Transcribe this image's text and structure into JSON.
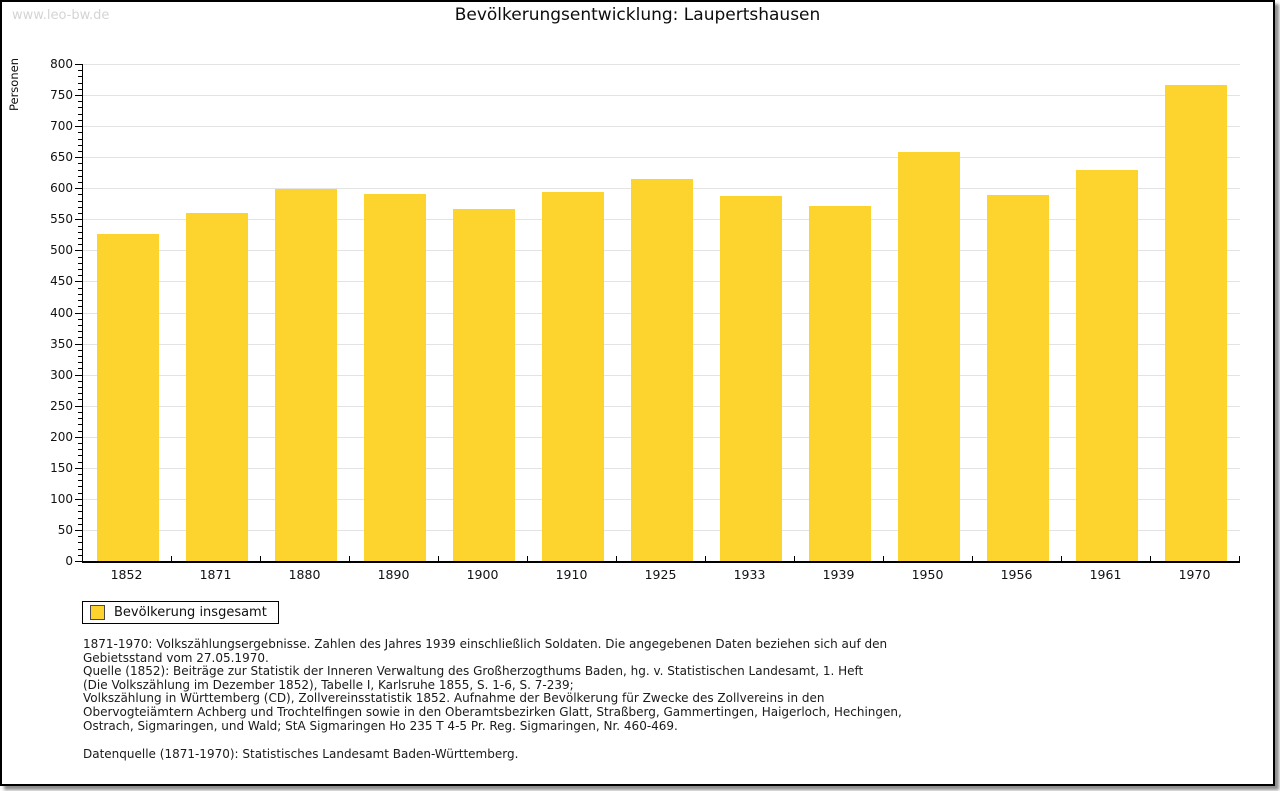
{
  "watermark": "www.leo-bw.de",
  "title": "Bevölkerungsentwicklung: Laupertshausen",
  "chart_data": {
    "type": "bar",
    "title": "Bevölkerungsentwicklung: Laupertshausen",
    "xlabel": "",
    "ylabel": "Personen",
    "categories": [
      "1852",
      "1871",
      "1880",
      "1890",
      "1900",
      "1910",
      "1925",
      "1933",
      "1939",
      "1950",
      "1956",
      "1961",
      "1970"
    ],
    "series": [
      {
        "name": "Bevölkerung insgesamt",
        "values": [
          526,
          560,
          598,
          590,
          567,
          594,
          615,
          588,
          572,
          659,
          589,
          630,
          766
        ]
      }
    ],
    "ylim": [
      0,
      800
    ],
    "y_tick_step": 50,
    "y_minor_tick_step": 10,
    "grid": true,
    "legend_position": "bottom-left",
    "bar_color": "#fdd42d"
  },
  "legend": {
    "label": "Bevölkerung insgesamt",
    "swatch_color": "#fdd42d"
  },
  "footer": {
    "lines": [
      "1871-1970: Volkszählungsergebnisse. Zahlen des Jahres 1939 einschließlich Soldaten. Die angegebenen Daten beziehen sich auf den",
      "Gebietsstand vom 27.05.1970.",
      "Quelle (1852): Beiträge zur Statistik der Inneren Verwaltung des Großherzogthums Baden, hg. v. Statistischen Landesamt, 1. Heft",
      "(Die Volkszählung im Dezember 1852), Tabelle I, Karlsruhe 1855, S. 1-6, S. 7-239;",
      "Volkszählung in Württemberg (CD), Zollvereinsstatistik 1852. Aufnahme der Bevölkerung für Zwecke des Zollvereins in den",
      "Obervogteiämtern Achberg und Trochtelfingen sowie in den Oberamtsbezirken Glatt, Straßberg, Gammertingen, Haigerloch, Hechingen,",
      "Ostrach, Sigmaringen, und Wald; StA Sigmaringen Ho 235 T 4-5 Pr. Reg. Sigmaringen, Nr. 460-469."
    ],
    "datasource": "Datenquelle (1871-1970): Statistisches Landesamt Baden-Württemberg."
  },
  "colors": {
    "bar": "#fdd42d",
    "grid": "#e3e3e3",
    "axis": "#000000",
    "watermark": "#d4d4d4"
  }
}
